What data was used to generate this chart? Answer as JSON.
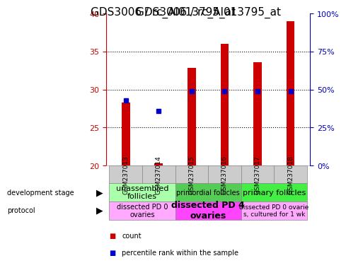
{
  "title": "GDS3006 / rc_AI013795_at",
  "samples": [
    "GSM237013",
    "GSM237014",
    "GSM237015",
    "GSM237016",
    "GSM237017",
    "GSM237018"
  ],
  "count_values": [
    28.3,
    20.3,
    32.8,
    36.0,
    33.6,
    39.0
  ],
  "percentile_values": [
    43,
    36,
    49,
    49,
    49,
    49
  ],
  "ylim_left": [
    20,
    40
  ],
  "ylim_right": [
    0,
    100
  ],
  "yticks_left": [
    20,
    25,
    30,
    35,
    40
  ],
  "yticks_right": [
    0,
    25,
    50,
    75,
    100
  ],
  "bar_color": "#cc0000",
  "dot_color": "#0000cc",
  "axis_left_color": "#cc0000",
  "axis_right_color": "#0000bb",
  "tick_fontsize": 8,
  "title_fontsize": 11,
  "cell_gray": "#cccccc",
  "cell_border": "#888888",
  "dev_configs": [
    {
      "cols": [
        0,
        1
      ],
      "label": "unassembled\nfollicles",
      "color": "#aaffaa",
      "fontsize": 8,
      "fontweight": "normal"
    },
    {
      "cols": [
        2,
        3
      ],
      "label": "primordial follicles",
      "color": "#55cc55",
      "fontsize": 7,
      "fontweight": "normal"
    },
    {
      "cols": [
        4,
        5
      ],
      "label": "primary follicles",
      "color": "#44ee44",
      "fontsize": 8,
      "fontweight": "normal"
    }
  ],
  "prot_configs": [
    {
      "cols": [
        0,
        1
      ],
      "label": "dissected PD 0\novaries",
      "color": "#ffaaff",
      "fontsize": 7,
      "fontweight": "normal"
    },
    {
      "cols": [
        2,
        3
      ],
      "label": "dissected PD 4\novaries",
      "color": "#ff44ff",
      "fontsize": 9,
      "fontweight": "bold"
    },
    {
      "cols": [
        4,
        5
      ],
      "label": "dissected PD 0 ovarie\ns, cultured for 1 wk",
      "color": "#ffaaff",
      "fontsize": 6.5,
      "fontweight": "normal"
    }
  ],
  "legend_items": [
    {
      "color": "#cc0000",
      "label": "count"
    },
    {
      "color": "#0000cc",
      "label": "percentile rank within the sample"
    }
  ],
  "left_labels": [
    {
      "text": "development stage",
      "arrow": true,
      "row": "dev"
    },
    {
      "text": "protocol",
      "arrow": true,
      "row": "prot"
    }
  ]
}
